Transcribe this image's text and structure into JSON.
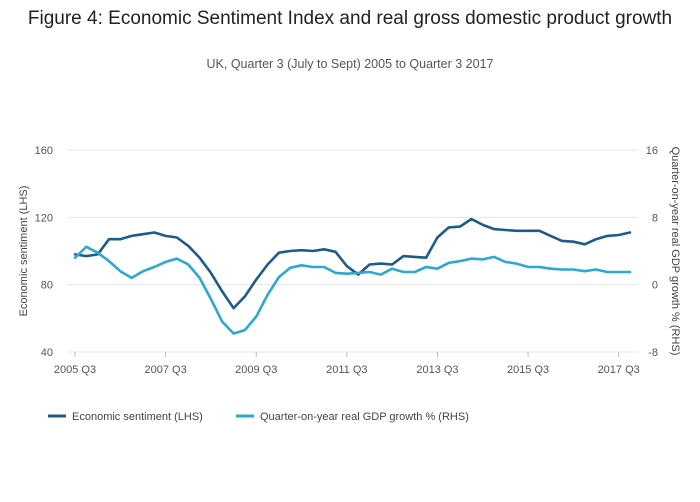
{
  "chart_data": {
    "type": "line",
    "title": "Figure 4: Economic Sentiment Index and real gross domestic product growth",
    "subtitle": "UK, Quarter 3 (July to Sept) 2005 to Quarter 3 2017",
    "xlabel": "",
    "ylabel_left": "Economic sentiment (LHS)",
    "ylabel_right": "Quarter-on-year real GDP growth % (RHS)",
    "ylim_left": [
      40,
      160
    ],
    "ylim_right": [
      -8,
      16
    ],
    "yticks_left": [
      "40",
      "80",
      "120",
      "160"
    ],
    "yticks_right": [
      "-8",
      "0",
      "8",
      "16"
    ],
    "xticks": [
      "2005 Q3",
      "2007 Q3",
      "2009 Q3",
      "2011 Q3",
      "2013 Q3",
      "2015 Q3",
      "2017 Q3"
    ],
    "series": [
      {
        "name": "Economic sentiment (LHS)",
        "axis": "left",
        "color": "#1f5b8a",
        "values": [
          98,
          97,
          98,
          107,
          107,
          109,
          110,
          111,
          109,
          108,
          103,
          96,
          87,
          76,
          66,
          73,
          83,
          92,
          99,
          100,
          100.5,
          100,
          101,
          99.5,
          91,
          86,
          92,
          92.5,
          92,
          97,
          96.5,
          96,
          108,
          114,
          114.5,
          119,
          115.5,
          113,
          112.5,
          112,
          112,
          112,
          109,
          106,
          105.5,
          104,
          107,
          109,
          109.5,
          111
        ]
      },
      {
        "name": "Quarter-on-year real GDP growth % (RHS)",
        "axis": "right",
        "color": "#2ea8d0",
        "values": [
          3.2,
          4.5,
          3.8,
          2.8,
          1.6,
          0.8,
          1.6,
          2.1,
          2.7,
          3.1,
          2.4,
          0.8,
          -1.7,
          -4.4,
          -5.8,
          -5.4,
          -3.8,
          -1.2,
          0.9,
          2.0,
          2.3,
          2.1,
          2.1,
          1.4,
          1.3,
          1.4,
          1.5,
          1.2,
          1.9,
          1.5,
          1.5,
          2.1,
          1.9,
          2.6,
          2.8,
          3.1,
          3.0,
          3.3,
          2.7,
          2.5,
          2.1,
          2.1,
          1.9,
          1.8,
          1.8,
          1.6,
          1.8,
          1.5,
          1.5,
          1.5
        ]
      }
    ]
  }
}
